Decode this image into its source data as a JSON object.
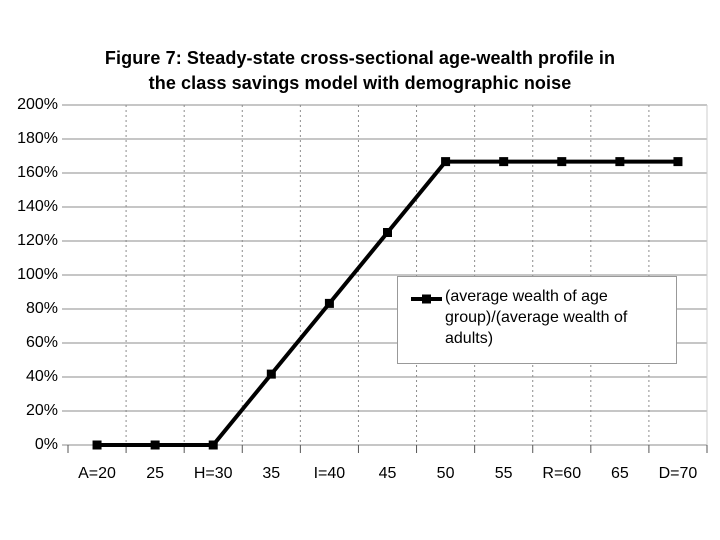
{
  "figure": {
    "title_lines": [
      "Figure 7: Steady-state cross-sectional age-wealth profile in",
      "the class savings model with demographic noise"
    ]
  },
  "legend": {
    "label": "(average wealth of age group)/(average wealth of adults)"
  },
  "chart_data": {
    "type": "line",
    "title": "Figure 7: Steady-state cross-sectional age-wealth profile in the class savings model with demographic noise",
    "categories": [
      "A=20",
      "25",
      "H=30",
      "35",
      "I=40",
      "45",
      "50",
      "55",
      "R=60",
      "65",
      "D=70"
    ],
    "series": [
      {
        "name": "(average wealth of age group)/(average wealth of adults)",
        "values": [
          0,
          0,
          0,
          41.7,
          83.3,
          125,
          166.7,
          166.7,
          166.7,
          166.7,
          166.7
        ],
        "marker": "square",
        "color": "#000000"
      }
    ],
    "xlabel": "",
    "ylabel": "",
    "ylim": [
      0,
      200
    ],
    "y_tick_values": [
      0,
      20,
      40,
      60,
      80,
      100,
      120,
      140,
      160,
      180,
      200
    ],
    "y_tick_labels": [
      "0%",
      "20%",
      "40%",
      "60%",
      "80%",
      "100%",
      "120%",
      "140%",
      "160%",
      "180%",
      "200%"
    ],
    "grid": {
      "horizontal": "solid",
      "vertical": "dashed"
    },
    "legend_position": "inside-right",
    "colors": {
      "background": "#ffffff",
      "series": "#000000",
      "gridline": "#8c8c8c",
      "tick": "#555555",
      "text": "#000000",
      "legend_border": "#999999",
      "plot_right_border": "#cccccc"
    }
  }
}
